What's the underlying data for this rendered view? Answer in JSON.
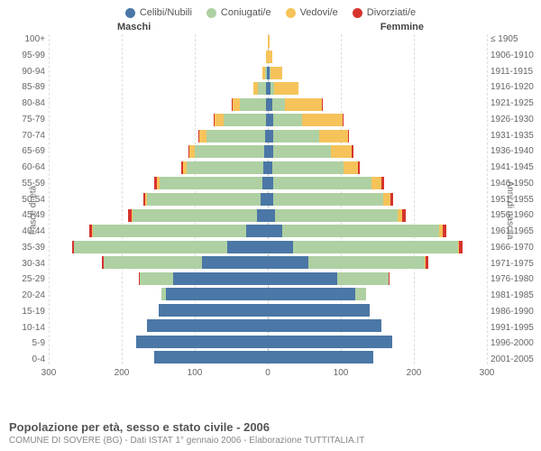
{
  "chart": {
    "type": "population-pyramid",
    "legend": [
      {
        "label": "Celibi/Nubili",
        "color": "#4b77a6"
      },
      {
        "label": "Coniugati/e",
        "color": "#aed0a2"
      },
      {
        "label": "Vedovi/e",
        "color": "#f6c35a"
      },
      {
        "label": "Divorziati/e",
        "color": "#d6332e"
      }
    ],
    "male_header": "Maschi",
    "female_header": "Femmine",
    "y_label_left": "Fasce di età",
    "y_label_right": "Anni di nascita",
    "age_groups": [
      "100+",
      "95-99",
      "90-94",
      "85-89",
      "80-84",
      "75-79",
      "70-74",
      "65-69",
      "60-64",
      "55-59",
      "50-54",
      "45-49",
      "40-44",
      "35-39",
      "30-34",
      "25-29",
      "20-24",
      "15-19",
      "10-14",
      "5-9",
      "0-4"
    ],
    "birth_years": [
      "≤ 1905",
      "1906-1910",
      "1911-1915",
      "1916-1920",
      "1921-1925",
      "1926-1930",
      "1931-1935",
      "1936-1940",
      "1941-1945",
      "1946-1950",
      "1951-1955",
      "1956-1960",
      "1961-1965",
      "1966-1970",
      "1971-1975",
      "1976-1980",
      "1981-1985",
      "1986-1990",
      "1991-1995",
      "1996-2000",
      "2001-2005"
    ],
    "x_ticks": [
      300,
      200,
      100,
      0,
      100,
      200,
      300
    ],
    "x_max": 300,
    "colors": {
      "single": "#4b77a6",
      "married": "#aed0a2",
      "widowed": "#f6c35a",
      "divorced": "#d6332e",
      "grid": "#dddddd",
      "center_grid": "#bbbbbb",
      "background": "#ffffff",
      "text": "#666666"
    },
    "bars": [
      {
        "age": "100+",
        "m": {
          "s": 0,
          "c": 0,
          "w": 0,
          "d": 0
        },
        "f": {
          "s": 0,
          "c": 0,
          "w": 3,
          "d": 0
        }
      },
      {
        "age": "95-99",
        "m": {
          "s": 0,
          "c": 0,
          "w": 2,
          "d": 0
        },
        "f": {
          "s": 0,
          "c": 0,
          "w": 6,
          "d": 0
        }
      },
      {
        "age": "90-94",
        "m": {
          "s": 1,
          "c": 3,
          "w": 4,
          "d": 0
        },
        "f": {
          "s": 2,
          "c": 2,
          "w": 16,
          "d": 0
        }
      },
      {
        "age": "85-89",
        "m": {
          "s": 2,
          "c": 12,
          "w": 6,
          "d": 0
        },
        "f": {
          "s": 4,
          "c": 5,
          "w": 33,
          "d": 0
        }
      },
      {
        "age": "80-84",
        "m": {
          "s": 3,
          "c": 35,
          "w": 10,
          "d": 1
        },
        "f": {
          "s": 6,
          "c": 18,
          "w": 50,
          "d": 1
        }
      },
      {
        "age": "75-79",
        "m": {
          "s": 3,
          "c": 58,
          "w": 12,
          "d": 1
        },
        "f": {
          "s": 7,
          "c": 40,
          "w": 55,
          "d": 1
        }
      },
      {
        "age": "70-74",
        "m": {
          "s": 4,
          "c": 80,
          "w": 10,
          "d": 1
        },
        "f": {
          "s": 8,
          "c": 62,
          "w": 40,
          "d": 1
        }
      },
      {
        "age": "65-69",
        "m": {
          "s": 5,
          "c": 95,
          "w": 7,
          "d": 2
        },
        "f": {
          "s": 7,
          "c": 80,
          "w": 28,
          "d": 2
        }
      },
      {
        "age": "60-64",
        "m": {
          "s": 6,
          "c": 105,
          "w": 5,
          "d": 2
        },
        "f": {
          "s": 6,
          "c": 98,
          "w": 20,
          "d": 2
        }
      },
      {
        "age": "55-59",
        "m": {
          "s": 8,
          "c": 140,
          "w": 4,
          "d": 3
        },
        "f": {
          "s": 7,
          "c": 135,
          "w": 14,
          "d": 3
        }
      },
      {
        "age": "50-54",
        "m": {
          "s": 10,
          "c": 155,
          "w": 3,
          "d": 3
        },
        "f": {
          "s": 8,
          "c": 150,
          "w": 10,
          "d": 4
        }
      },
      {
        "age": "45-49",
        "m": {
          "s": 15,
          "c": 170,
          "w": 2,
          "d": 4
        },
        "f": {
          "s": 10,
          "c": 168,
          "w": 6,
          "d": 5
        }
      },
      {
        "age": "40-44",
        "m": {
          "s": 30,
          "c": 210,
          "w": 1,
          "d": 4
        },
        "f": {
          "s": 20,
          "c": 215,
          "w": 4,
          "d": 5
        }
      },
      {
        "age": "35-39",
        "m": {
          "s": 55,
          "c": 210,
          "w": 0,
          "d": 3
        },
        "f": {
          "s": 35,
          "c": 225,
          "w": 2,
          "d": 5
        }
      },
      {
        "age": "30-34",
        "m": {
          "s": 90,
          "c": 135,
          "w": 0,
          "d": 2
        },
        "f": {
          "s": 55,
          "c": 160,
          "w": 1,
          "d": 4
        }
      },
      {
        "age": "25-29",
        "m": {
          "s": 130,
          "c": 45,
          "w": 0,
          "d": 1
        },
        "f": {
          "s": 95,
          "c": 70,
          "w": 0,
          "d": 1
        }
      },
      {
        "age": "20-24",
        "m": {
          "s": 140,
          "c": 6,
          "w": 0,
          "d": 0
        },
        "f": {
          "s": 120,
          "c": 15,
          "w": 0,
          "d": 0
        }
      },
      {
        "age": "15-19",
        "m": {
          "s": 150,
          "c": 0,
          "w": 0,
          "d": 0
        },
        "f": {
          "s": 140,
          "c": 0,
          "w": 0,
          "d": 0
        }
      },
      {
        "age": "10-14",
        "m": {
          "s": 165,
          "c": 0,
          "w": 0,
          "d": 0
        },
        "f": {
          "s": 155,
          "c": 0,
          "w": 0,
          "d": 0
        }
      },
      {
        "age": "5-9",
        "m": {
          "s": 180,
          "c": 0,
          "w": 0,
          "d": 0
        },
        "f": {
          "s": 170,
          "c": 0,
          "w": 0,
          "d": 0
        }
      },
      {
        "age": "0-4",
        "m": {
          "s": 155,
          "c": 0,
          "w": 0,
          "d": 0
        },
        "f": {
          "s": 145,
          "c": 0,
          "w": 0,
          "d": 0
        }
      }
    ]
  },
  "footer": {
    "title": "Popolazione per età, sesso e stato civile - 2006",
    "subtitle": "COMUNE DI SOVERE (BG) - Dati ISTAT 1° gennaio 2006 - Elaborazione TUTTITALIA.IT"
  }
}
